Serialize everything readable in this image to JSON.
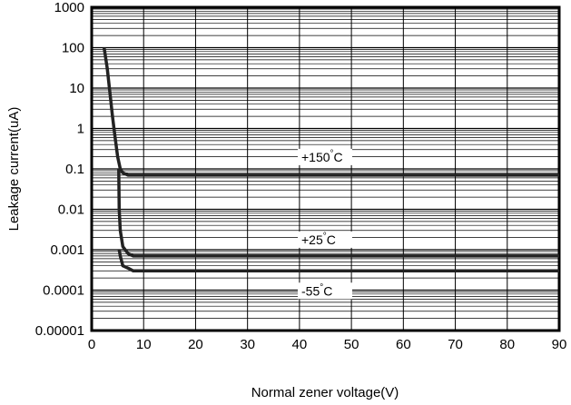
{
  "chart_data": {
    "type": "line",
    "xlabel": "Normal zener voltage(V)",
    "ylabel": "Leakage current(uA)",
    "xlim": [
      0,
      90
    ],
    "ylim": [
      1e-05,
      1000
    ],
    "yscale": "log",
    "grid": true,
    "x_ticks": [
      "0",
      "10",
      "20",
      "30",
      "40",
      "50",
      "60",
      "70",
      "80",
      "90"
    ],
    "y_ticks": [
      "0.00001",
      "0.0001",
      "0.001",
      "0.01",
      "0.1",
      "1",
      "10",
      "100",
      "1000"
    ],
    "series": [
      {
        "label_symbol": "+150 °C",
        "label_value": "+150",
        "x": [
          2.4,
          3,
          3.5,
          4,
          4.5,
          5,
          5.5,
          6,
          7,
          8,
          10,
          20,
          50,
          90
        ],
        "y": [
          100,
          30,
          8,
          2,
          0.6,
          0.2,
          0.1,
          0.08,
          0.07,
          0.07,
          0.07,
          0.07,
          0.07,
          0.07
        ]
      },
      {
        "label_symbol": "+25 °C",
        "label_value": "+25",
        "x": [
          5.2,
          5.3,
          5.5,
          6,
          7,
          8,
          10,
          20,
          50,
          90
        ],
        "y": [
          0.1,
          0.01,
          0.003,
          0.0012,
          0.0008,
          0.0007,
          0.0007,
          0.0007,
          0.0007,
          0.0007
        ]
      },
      {
        "label_symbol": "-55 °C",
        "label_value": "-55",
        "x": [
          5.3,
          5.5,
          6,
          7,
          8,
          10,
          20,
          50,
          90
        ],
        "y": [
          0.001,
          0.0007,
          0.0004,
          0.00035,
          0.0003,
          0.0003,
          0.0003,
          0.0003,
          0.0003
        ]
      }
    ]
  }
}
